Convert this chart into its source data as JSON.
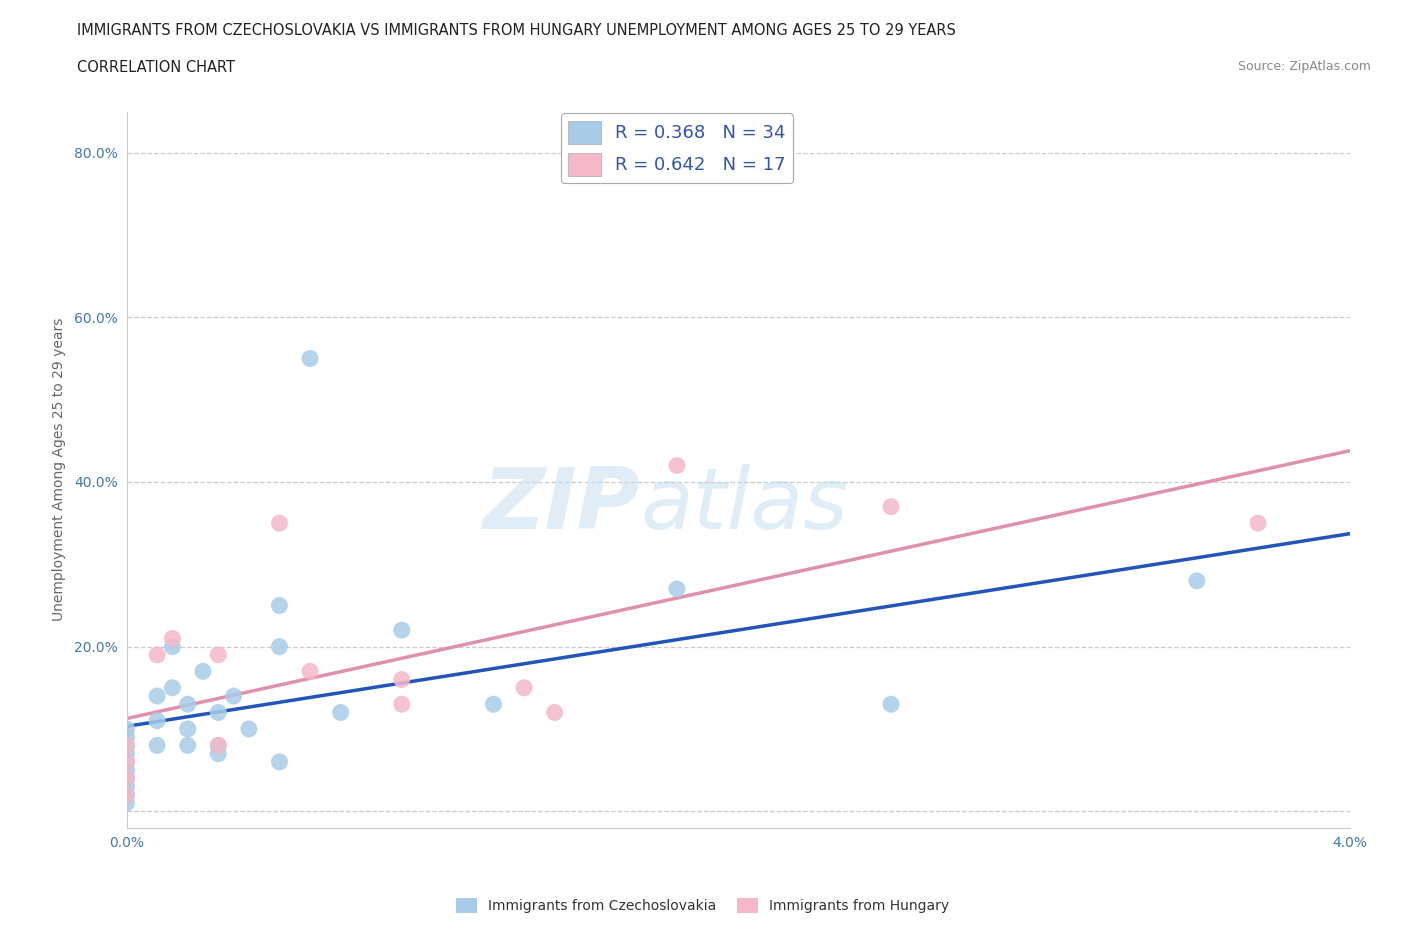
{
  "title_line1": "IMMIGRANTS FROM CZECHOSLOVAKIA VS IMMIGRANTS FROM HUNGARY UNEMPLOYMENT AMONG AGES 25 TO 29 YEARS",
  "title_line2": "CORRELATION CHART",
  "source_text": "Source: ZipAtlas.com",
  "ylabel": "Unemployment Among Ages 25 to 29 years",
  "xlim": [
    0.0,
    0.04
  ],
  "ylim": [
    -0.02,
    0.85
  ],
  "xticks": [
    0.0,
    0.005,
    0.01,
    0.015,
    0.02,
    0.025,
    0.03,
    0.035,
    0.04
  ],
  "xticklabels": [
    "0.0%",
    "",
    "",
    "",
    "",
    "",
    "",
    "",
    "4.0%"
  ],
  "yticks": [
    0.0,
    0.2,
    0.4,
    0.6,
    0.8
  ],
  "yticklabels": [
    "",
    "20.0%",
    "40.0%",
    "60.0%",
    "80.0%"
  ],
  "czech_color": "#a8cce8",
  "hungary_color": "#f4b8c8",
  "czech_line_color": "#2255bb",
  "hungary_line_color": "#e090a8",
  "R_czech": 0.368,
  "N_czech": 34,
  "R_hungary": 0.642,
  "N_hungary": 17,
  "czech_scatter_x": [
    0.0,
    0.0,
    0.0,
    0.0,
    0.0,
    0.0,
    0.0,
    0.0,
    0.0,
    0.0,
    0.001,
    0.001,
    0.001,
    0.0015,
    0.0015,
    0.002,
    0.002,
    0.002,
    0.0025,
    0.003,
    0.003,
    0.003,
    0.0035,
    0.004,
    0.005,
    0.005,
    0.005,
    0.006,
    0.007,
    0.009,
    0.012,
    0.018,
    0.025,
    0.035
  ],
  "czech_scatter_y": [
    0.02,
    0.03,
    0.04,
    0.05,
    0.06,
    0.07,
    0.08,
    0.09,
    0.1,
    0.01,
    0.11,
    0.14,
    0.08,
    0.15,
    0.2,
    0.1,
    0.13,
    0.08,
    0.17,
    0.08,
    0.07,
    0.12,
    0.14,
    0.1,
    0.2,
    0.25,
    0.06,
    0.55,
    0.12,
    0.22,
    0.13,
    0.27,
    0.13,
    0.28
  ],
  "hungary_scatter_x": [
    0.0,
    0.0,
    0.0,
    0.0,
    0.001,
    0.0015,
    0.003,
    0.003,
    0.005,
    0.006,
    0.009,
    0.009,
    0.013,
    0.014,
    0.018,
    0.025,
    0.037
  ],
  "hungary_scatter_y": [
    0.02,
    0.04,
    0.06,
    0.08,
    0.19,
    0.21,
    0.08,
    0.19,
    0.35,
    0.17,
    0.13,
    0.16,
    0.15,
    0.12,
    0.42,
    0.37,
    0.35
  ],
  "background_color": "#ffffff",
  "grid_color": "#cccccc"
}
